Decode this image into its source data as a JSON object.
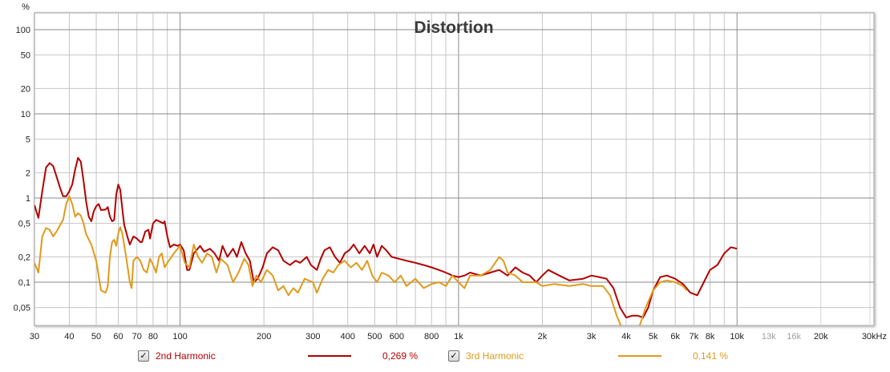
{
  "chart_data": {
    "type": "line",
    "title": "Distortion",
    "xlabel": "Hz",
    "ylabel": "%",
    "x_scale": "log",
    "y_scale": "log",
    "xlim": [
      30,
      30000
    ],
    "ylim": [
      0.03,
      160
    ],
    "grid": true,
    "x_ticks": [
      {
        "v": 30,
        "label": "30"
      },
      {
        "v": 40,
        "label": "40"
      },
      {
        "v": 50,
        "label": "50"
      },
      {
        "v": 60,
        "label": "60"
      },
      {
        "v": 70,
        "label": "70"
      },
      {
        "v": 80,
        "label": "80"
      },
      {
        "v": 90,
        "label": ""
      },
      {
        "v": 100,
        "label": "100"
      },
      {
        "v": 200,
        "label": "200"
      },
      {
        "v": 300,
        "label": "300"
      },
      {
        "v": 400,
        "label": "400"
      },
      {
        "v": 500,
        "label": "500"
      },
      {
        "v": 600,
        "label": "600"
      },
      {
        "v": 700,
        "label": ""
      },
      {
        "v": 800,
        "label": "800"
      },
      {
        "v": 900,
        "label": ""
      },
      {
        "v": 1000,
        "label": "1k"
      },
      {
        "v": 2000,
        "label": "2k"
      },
      {
        "v": 3000,
        "label": "3k"
      },
      {
        "v": 4000,
        "label": "4k"
      },
      {
        "v": 5000,
        "label": "5k"
      },
      {
        "v": 6000,
        "label": "6k"
      },
      {
        "v": 7000,
        "label": "7k"
      },
      {
        "v": 8000,
        "label": "8k"
      },
      {
        "v": 9000,
        "label": ""
      },
      {
        "v": 10000,
        "label": "10k"
      },
      {
        "v": 13000,
        "label": "13k",
        "dim": true
      },
      {
        "v": 16000,
        "label": "16k",
        "dim": true
      },
      {
        "v": 20000,
        "label": "20k"
      },
      {
        "v": 30000,
        "label": "30kHz"
      }
    ],
    "y_ticks": [
      {
        "v": 100,
        "label": "100"
      },
      {
        "v": 50,
        "label": "50"
      },
      {
        "v": 20,
        "label": "20"
      },
      {
        "v": 10,
        "label": "10"
      },
      {
        "v": 5,
        "label": "5"
      },
      {
        "v": 2,
        "label": "2"
      },
      {
        "v": 1,
        "label": "1"
      },
      {
        "v": 0.5,
        "label": "0,5"
      },
      {
        "v": 0.2,
        "label": "0,2"
      },
      {
        "v": 0.1,
        "label": "0,1"
      },
      {
        "v": 0.05,
        "label": "0,05"
      }
    ],
    "series": [
      {
        "name": "2nd Harmonic",
        "color": "#b30000",
        "value_label": "0,269 %",
        "points": [
          [
            30,
            0.82
          ],
          [
            31,
            0.58
          ],
          [
            32,
            1.2
          ],
          [
            33,
            2.3
          ],
          [
            34,
            2.6
          ],
          [
            35,
            2.4
          ],
          [
            36,
            1.8
          ],
          [
            37,
            1.35
          ],
          [
            38,
            1.05
          ],
          [
            39,
            1.05
          ],
          [
            40,
            1.2
          ],
          [
            41,
            1.45
          ],
          [
            42,
            2.2
          ],
          [
            43,
            3.0
          ],
          [
            44,
            2.7
          ],
          [
            45,
            1.6
          ],
          [
            46,
            0.9
          ],
          [
            47,
            0.6
          ],
          [
            48,
            0.53
          ],
          [
            49,
            0.7
          ],
          [
            50,
            0.8
          ],
          [
            51,
            0.85
          ],
          [
            52,
            0.72
          ],
          [
            54,
            0.73
          ],
          [
            55,
            0.78
          ],
          [
            56,
            0.6
          ],
          [
            57,
            0.53
          ],
          [
            58,
            0.55
          ],
          [
            59,
            1.1
          ],
          [
            60,
            1.45
          ],
          [
            61,
            1.25
          ],
          [
            62,
            0.75
          ],
          [
            63,
            0.48
          ],
          [
            65,
            0.33
          ],
          [
            66,
            0.28
          ],
          [
            68,
            0.35
          ],
          [
            70,
            0.33
          ],
          [
            72,
            0.3
          ],
          [
            73,
            0.3
          ],
          [
            75,
            0.4
          ],
          [
            77,
            0.42
          ],
          [
            78,
            0.33
          ],
          [
            80,
            0.5
          ],
          [
            82,
            0.55
          ],
          [
            85,
            0.52
          ],
          [
            87,
            0.5
          ],
          [
            88,
            0.53
          ],
          [
            90,
            0.35
          ],
          [
            92,
            0.26
          ],
          [
            95,
            0.28
          ],
          [
            98,
            0.27
          ],
          [
            100,
            0.28
          ],
          [
            103,
            0.24
          ],
          [
            106,
            0.14
          ],
          [
            108,
            0.14
          ],
          [
            112,
            0.22
          ],
          [
            118,
            0.27
          ],
          [
            122,
            0.23
          ],
          [
            128,
            0.25
          ],
          [
            133,
            0.22
          ],
          [
            138,
            0.18
          ],
          [
            142,
            0.27
          ],
          [
            148,
            0.2
          ],
          [
            155,
            0.25
          ],
          [
            160,
            0.2
          ],
          [
            166,
            0.3
          ],
          [
            172,
            0.22
          ],
          [
            178,
            0.18
          ],
          [
            184,
            0.1
          ],
          [
            190,
            0.11
          ],
          [
            198,
            0.15
          ],
          [
            205,
            0.22
          ],
          [
            215,
            0.26
          ],
          [
            225,
            0.24
          ],
          [
            235,
            0.18
          ],
          [
            248,
            0.16
          ],
          [
            260,
            0.18
          ],
          [
            270,
            0.17
          ],
          [
            285,
            0.2
          ],
          [
            295,
            0.16
          ],
          [
            310,
            0.14
          ],
          [
            320,
            0.19
          ],
          [
            330,
            0.24
          ],
          [
            345,
            0.26
          ],
          [
            360,
            0.2
          ],
          [
            375,
            0.17
          ],
          [
            390,
            0.22
          ],
          [
            405,
            0.24
          ],
          [
            420,
            0.28
          ],
          [
            440,
            0.22
          ],
          [
            460,
            0.27
          ],
          [
            480,
            0.22
          ],
          [
            495,
            0.28
          ],
          [
            510,
            0.2
          ],
          [
            530,
            0.27
          ],
          [
            550,
            0.24
          ],
          [
            575,
            0.2
          ],
          [
            610,
            0.19
          ],
          [
            650,
            0.18
          ],
          [
            700,
            0.17
          ],
          [
            750,
            0.16
          ],
          [
            800,
            0.15
          ],
          [
            850,
            0.14
          ],
          [
            900,
            0.13
          ],
          [
            950,
            0.12
          ],
          [
            1000,
            0.115
          ],
          [
            1050,
            0.12
          ],
          [
            1100,
            0.13
          ],
          [
            1200,
            0.12
          ],
          [
            1300,
            0.13
          ],
          [
            1400,
            0.14
          ],
          [
            1500,
            0.12
          ],
          [
            1600,
            0.15
          ],
          [
            1700,
            0.13
          ],
          [
            1800,
            0.12
          ],
          [
            1900,
            0.1
          ],
          [
            2000,
            0.12
          ],
          [
            2100,
            0.14
          ],
          [
            2300,
            0.12
          ],
          [
            2500,
            0.105
          ],
          [
            2800,
            0.11
          ],
          [
            3000,
            0.12
          ],
          [
            3200,
            0.115
          ],
          [
            3400,
            0.11
          ],
          [
            3600,
            0.085
          ],
          [
            3800,
            0.05
          ],
          [
            4000,
            0.038
          ],
          [
            4200,
            0.04
          ],
          [
            4400,
            0.04
          ],
          [
            4600,
            0.038
          ],
          [
            4800,
            0.05
          ],
          [
            5000,
            0.08
          ],
          [
            5300,
            0.115
          ],
          [
            5600,
            0.12
          ],
          [
            6000,
            0.11
          ],
          [
            6400,
            0.095
          ],
          [
            6800,
            0.075
          ],
          [
            7200,
            0.07
          ],
          [
            7600,
            0.1
          ],
          [
            8000,
            0.14
          ],
          [
            8500,
            0.16
          ],
          [
            9000,
            0.22
          ],
          [
            9500,
            0.26
          ],
          [
            10000,
            0.25
          ]
        ]
      },
      {
        "name": "3rd Harmonic",
        "color": "#e09a1a",
        "value_label": "0,141 %",
        "points": [
          [
            30,
            0.17
          ],
          [
            31,
            0.13
          ],
          [
            32,
            0.35
          ],
          [
            33,
            0.44
          ],
          [
            34,
            0.42
          ],
          [
            35,
            0.35
          ],
          [
            36,
            0.4
          ],
          [
            37,
            0.47
          ],
          [
            38,
            0.55
          ],
          [
            39,
            0.85
          ],
          [
            40,
            1.05
          ],
          [
            41,
            0.85
          ],
          [
            42,
            0.6
          ],
          [
            43,
            0.66
          ],
          [
            44,
            0.62
          ],
          [
            45,
            0.5
          ],
          [
            46,
            0.37
          ],
          [
            48,
            0.28
          ],
          [
            50,
            0.18
          ],
          [
            51,
            0.12
          ],
          [
            52,
            0.08
          ],
          [
            54,
            0.075
          ],
          [
            55,
            0.09
          ],
          [
            56,
            0.2
          ],
          [
            57,
            0.3
          ],
          [
            58,
            0.32
          ],
          [
            59,
            0.27
          ],
          [
            60,
            0.38
          ],
          [
            61,
            0.45
          ],
          [
            62,
            0.38
          ],
          [
            64,
            0.2
          ],
          [
            66,
            0.1
          ],
          [
            67,
            0.085
          ],
          [
            68,
            0.18
          ],
          [
            70,
            0.2
          ],
          [
            72,
            0.18
          ],
          [
            74,
            0.14
          ],
          [
            76,
            0.13
          ],
          [
            78,
            0.19
          ],
          [
            80,
            0.16
          ],
          [
            82,
            0.13
          ],
          [
            84,
            0.2
          ],
          [
            86,
            0.22
          ],
          [
            88,
            0.15
          ],
          [
            90,
            0.17
          ],
          [
            95,
            0.22
          ],
          [
            100,
            0.27
          ],
          [
            104,
            0.17
          ],
          [
            108,
            0.15
          ],
          [
            112,
            0.28
          ],
          [
            116,
            0.2
          ],
          [
            120,
            0.17
          ],
          [
            125,
            0.22
          ],
          [
            130,
            0.2
          ],
          [
            135,
            0.13
          ],
          [
            140,
            0.19
          ],
          [
            148,
            0.16
          ],
          [
            155,
            0.1
          ],
          [
            162,
            0.13
          ],
          [
            170,
            0.19
          ],
          [
            176,
            0.16
          ],
          [
            182,
            0.09
          ],
          [
            188,
            0.12
          ],
          [
            195,
            0.1
          ],
          [
            205,
            0.14
          ],
          [
            215,
            0.12
          ],
          [
            225,
            0.08
          ],
          [
            235,
            0.09
          ],
          [
            245,
            0.07
          ],
          [
            255,
            0.085
          ],
          [
            265,
            0.075
          ],
          [
            280,
            0.11
          ],
          [
            300,
            0.1
          ],
          [
            310,
            0.075
          ],
          [
            325,
            0.11
          ],
          [
            340,
            0.14
          ],
          [
            355,
            0.13
          ],
          [
            370,
            0.16
          ],
          [
            390,
            0.18
          ],
          [
            410,
            0.15
          ],
          [
            430,
            0.17
          ],
          [
            450,
            0.14
          ],
          [
            470,
            0.18
          ],
          [
            490,
            0.12
          ],
          [
            510,
            0.1
          ],
          [
            530,
            0.13
          ],
          [
            560,
            0.12
          ],
          [
            590,
            0.1
          ],
          [
            620,
            0.12
          ],
          [
            650,
            0.09
          ],
          [
            700,
            0.11
          ],
          [
            750,
            0.085
          ],
          [
            800,
            0.095
          ],
          [
            850,
            0.1
          ],
          [
            900,
            0.09
          ],
          [
            950,
            0.12
          ],
          [
            1000,
            0.1
          ],
          [
            1050,
            0.085
          ],
          [
            1100,
            0.12
          ],
          [
            1200,
            0.12
          ],
          [
            1300,
            0.14
          ],
          [
            1400,
            0.2
          ],
          [
            1450,
            0.18
          ],
          [
            1500,
            0.13
          ],
          [
            1600,
            0.12
          ],
          [
            1700,
            0.1
          ],
          [
            1900,
            0.1
          ],
          [
            2000,
            0.09
          ],
          [
            2200,
            0.095
          ],
          [
            2500,
            0.09
          ],
          [
            2800,
            0.095
          ],
          [
            3000,
            0.09
          ],
          [
            3300,
            0.09
          ],
          [
            3500,
            0.07
          ],
          [
            3700,
            0.04
          ],
          [
            3900,
            0.026
          ],
          [
            4400,
            0.026
          ],
          [
            4700,
            0.05
          ],
          [
            5000,
            0.08
          ],
          [
            5300,
            0.1
          ],
          [
            5600,
            0.105
          ],
          [
            6000,
            0.1
          ],
          [
            6400,
            0.09
          ],
          [
            6600,
            0.08
          ]
        ]
      }
    ]
  },
  "legend": {
    "items": [
      {
        "checked": true,
        "check_glyph": "✓",
        "label": "2nd Harmonic",
        "value": "0,269 %"
      },
      {
        "checked": true,
        "check_glyph": "✓",
        "label": "3rd Harmonic",
        "value": "0,141 %"
      }
    ]
  }
}
